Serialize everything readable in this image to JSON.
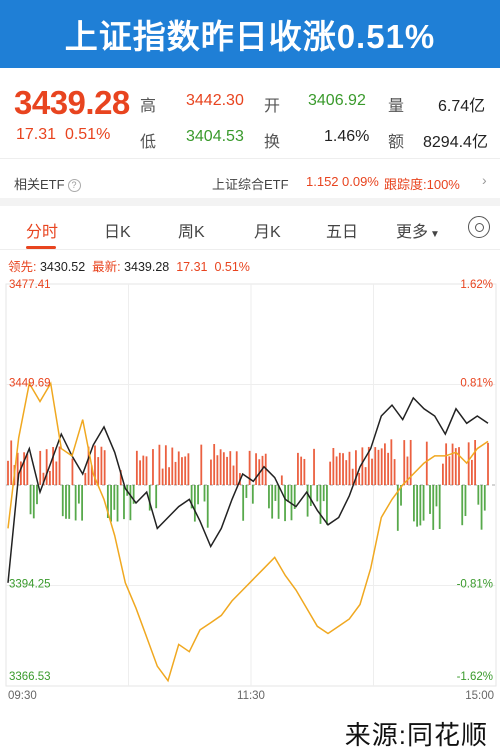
{
  "banner": {
    "title": "上证指数昨日收涨0.51%"
  },
  "quote": {
    "price": "3439.28",
    "change": "17.31",
    "change_pct": "0.51%",
    "high_label": "高",
    "high": "3442.30",
    "open_label": "开",
    "open": "3406.92",
    "volume_label": "量",
    "volume": "6.74亿",
    "low_label": "低",
    "low": "3404.53",
    "turnover_label": "换",
    "turnover": "1.46%",
    "amount_label": "额",
    "amount": "8294.4亿"
  },
  "etf": {
    "label": "相关ETF",
    "name": "上证综合ETF",
    "price": "1.152",
    "pct": "0.09%",
    "tracking": "跟踪度:100%",
    "help_icon": "question-circle-icon",
    "chevron_icon": "chevron-right-icon"
  },
  "tabs": [
    "分时",
    "日K",
    "周K",
    "月K",
    "五日",
    "更多"
  ],
  "info": {
    "lead_label": "领先:",
    "lead": "3430.52",
    "latest_label": "最新:",
    "latest": "3439.28",
    "change": "17.31",
    "pct": "0.51%"
  },
  "colors": {
    "up": "#e8441f",
    "down": "#3a9a2c",
    "price_line": "#222222",
    "lead_line": "#f0a820",
    "accent": "#1f7fd6"
  },
  "chart_data": {
    "type": "line",
    "y_labels_left": [
      "3477.41",
      "3449.69",
      "3394.25",
      "3366.53"
    ],
    "y_labels_right": [
      "1.62%",
      "0.81%",
      "-0.81%",
      "-1.62%"
    ],
    "x_labels": [
      "09:30",
      "11:30",
      "15:00"
    ],
    "ylim": [
      3366.53,
      3477.41
    ],
    "prev_close": 3421.97,
    "series": [
      {
        "name": "最新",
        "values": [
          3395,
          3425,
          3432,
          3420,
          3428,
          3436,
          3430,
          3425,
          3433,
          3438,
          3431,
          3421,
          3417,
          3420,
          3410,
          3413,
          3416,
          3418,
          3412,
          3405,
          3410,
          3418,
          3425,
          3423,
          3427,
          3424,
          3418,
          3416,
          3420,
          3415,
          3411,
          3413,
          3419,
          3427,
          3432,
          3441,
          3444,
          3440,
          3446,
          3443,
          3441,
          3436,
          3443,
          3439,
          3441,
          3439
        ]
      },
      {
        "name": "领先",
        "values": [
          3410,
          3435,
          3450,
          3445,
          3450,
          3432,
          3430,
          3440,
          3425,
          3418,
          3408,
          3395,
          3388,
          3380,
          3372,
          3368,
          3378,
          3376,
          3382,
          3384,
          3386,
          3390,
          3393,
          3396,
          3399,
          3402,
          3397,
          3393,
          3388,
          3383,
          3381,
          3383,
          3385,
          3389,
          3399,
          3413,
          3418,
          3422,
          3425,
          3428,
          3430,
          3430,
          3431,
          3428,
          3432,
          3434
        ]
      }
    ]
  },
  "watermark": "来源:同花顺"
}
